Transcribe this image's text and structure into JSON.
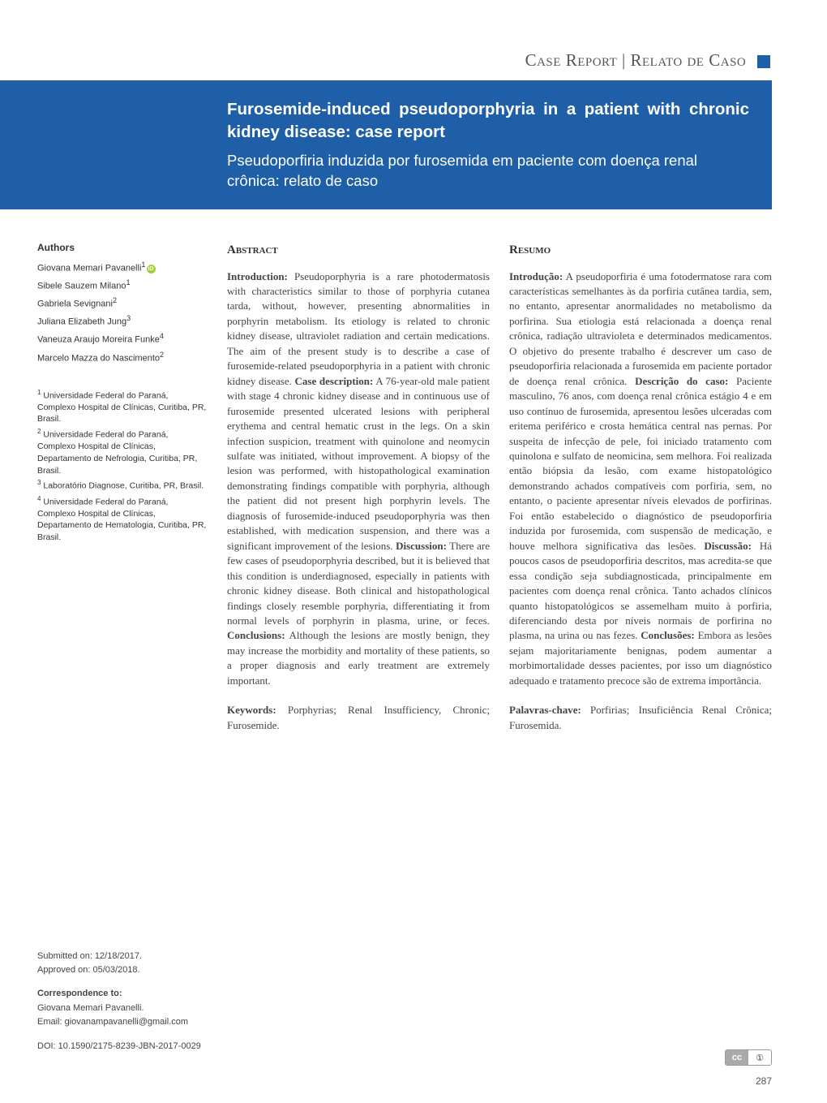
{
  "section_header": "Case Report | Relato de Caso",
  "title": {
    "en": "Furosemide-induced pseudoporphyria in a patient with chronic kidney disease: case report",
    "pt": "Pseudoporfiria induzida por furosemida em paciente com doença renal crônica: relato de caso"
  },
  "authors_heading": "Authors",
  "authors": [
    {
      "name": "Giovana Memari Pavanelli",
      "sup": "1",
      "orcid": true
    },
    {
      "name": "Sibele Sauzem Milano",
      "sup": "1"
    },
    {
      "name": "Gabriela Sevignani",
      "sup": "2"
    },
    {
      "name": "Juliana Elizabeth Jung",
      "sup": "3"
    },
    {
      "name": "Vaneuza Araujo Moreira Funke",
      "sup": "4"
    },
    {
      "name": "Marcelo Mazza do Nascimento",
      "sup": "2"
    }
  ],
  "affiliations": [
    {
      "sup": "1",
      "text": "Universidade Federal do Paraná, Complexo Hospital de Clínicas, Curitiba, PR, Brasil."
    },
    {
      "sup": "2",
      "text": "Universidade Federal do Paraná, Complexo Hospital de Clínicas, Departamento de Nefrologia, Curitiba, PR, Brasil."
    },
    {
      "sup": "3",
      "text": "Laboratório Diagnose, Curitiba, PR, Brasil."
    },
    {
      "sup": "4",
      "text": "Universidade Federal do Paraná, Complexo Hospital de Clínicas, Departamento de Hematologia, Curitiba, PR, Brasil."
    }
  ],
  "submitted": "Submitted on: 12/18/2017.",
  "approved": "Approved on: 05/03/2018.",
  "correspondence_heading": "Correspondence to:",
  "correspondence_name": "Giovana Memari Pavanelli.",
  "correspondence_email": "Email: giovanampavanelli@gmail.com",
  "doi": "DOI: 10.1590/2175-8239-JBN-2017-0029",
  "abstract": {
    "heading": "Abstract",
    "intro_label": "Introduction:",
    "intro": " Pseudoporphyria is a rare photodermatosis with characteristics similar to those of porphyria cutanea tarda, without, however, presenting abnormalities in porphyrin metabolism. Its etiology is related to chronic kidney disease, ultraviolet radiation and certain medications. The aim of the present study is to describe a case of furosemide-related pseudoporphyria in a patient with chronic kidney disease. ",
    "case_label": "Case description:",
    "case": " A 76-year-old male patient with stage 4 chronic kidney disease and in continuous use of furosemide presented ulcerated lesions with peripheral erythema and central hematic crust in the legs. On a skin infection suspicion, treatment with quinolone and neomycin sulfate was initiated, without improvement. A biopsy of the lesion was performed, with histopathological examination demonstrating findings compatible with porphyria, although the patient did not present high porphyrin levels. The diagnosis of furosemide-induced pseudoporphyria was then established, with medication suspension, and there was a significant improvement of the lesions. ",
    "disc_label": "Discussion:",
    "disc": " There are few cases of pseudoporphyria described, but it is believed that this condition is underdiagnosed, especially in patients with chronic kidney disease. Both clinical and histopathological findings closely resemble porphyria, differentiating it from normal levels of porphyrin in plasma, urine, or feces. ",
    "conc_label": "Conclusions:",
    "conc": " Although the lesions are mostly benign, they may increase the morbidity and mortality of these patients, so a proper diagnosis and early treatment are extremely important.",
    "keywords_label": "Keywords:",
    "keywords": " Porphyrias; Renal Insufficiency, Chronic; Furosemide."
  },
  "resumo": {
    "heading": "Resumo",
    "intro_label": "Introdução:",
    "intro": " A pseudoporfiria é uma fotodermatose rara com características semelhantes às da porfiria cutânea tardia, sem, no entanto, apresentar anormalidades no metabolismo da porfirina. Sua etiologia está relacionada a doença renal crônica, radiação ultravioleta e determinados medicamentos. O objetivo do presente trabalho é descrever um caso de pseudoporfiria relacionada a furosemida em paciente portador de doença renal crônica. ",
    "case_label": "Descrição do caso:",
    "case": " Paciente masculino, 76 anos, com doença renal crônica estágio 4 e em uso contínuo de furosemida, apresentou lesões ulceradas com eritema periférico e crosta hemática central nas pernas. Por suspeita de infecção de pele, foi iniciado tratamento com quinolona e sulfato de neomicina, sem melhora. Foi realizada então biópsia da lesão, com exame histopatológico demonstrando achados compatíveis com porfiria, sem, no entanto, o paciente apresentar níveis elevados de porfirinas. Foi então estabelecido o diagnóstico de pseudoporfiria induzida por furosemida, com suspensão de medicação, e houve melhora significativa das lesões. ",
    "disc_label": "Discussão:",
    "disc": " Há poucos casos de pseudoporfiria descritos, mas acredita-se que essa condição seja subdiagnosticada, principalmente em pacientes com doença renal crônica. Tanto achados clínicos quanto histopatológicos se assemelham muito à porfiria, diferenciando desta por níveis normais de porfirina no plasma, na urina ou nas fezes. ",
    "conc_label": "Conclusões:",
    "conc": " Embora as lesões sejam majoritariamente benignas, podem aumentar a morbimortalidade desses pacientes, por isso um diagnóstico adequado e tratamento precoce são de extrema importância.",
    "keywords_label": "Palavras-chave:",
    "keywords": " Porfirias; Insuficiência Renal Crônica; Furosemida."
  },
  "cc_label_left": "cc",
  "cc_label_right": "①",
  "page_number": "287",
  "colors": {
    "brand_blue": "#1e5fa8",
    "orcid_green": "#a6ce39",
    "text": "#444444",
    "background": "#ffffff"
  },
  "typography": {
    "body_font": "Georgia, serif",
    "ui_font": "Arial, sans-serif",
    "body_size_pt": 10,
    "title_en_size_pt": 15.5,
    "title_pt_size_pt": 14,
    "section_header_size_pt": 16
  }
}
